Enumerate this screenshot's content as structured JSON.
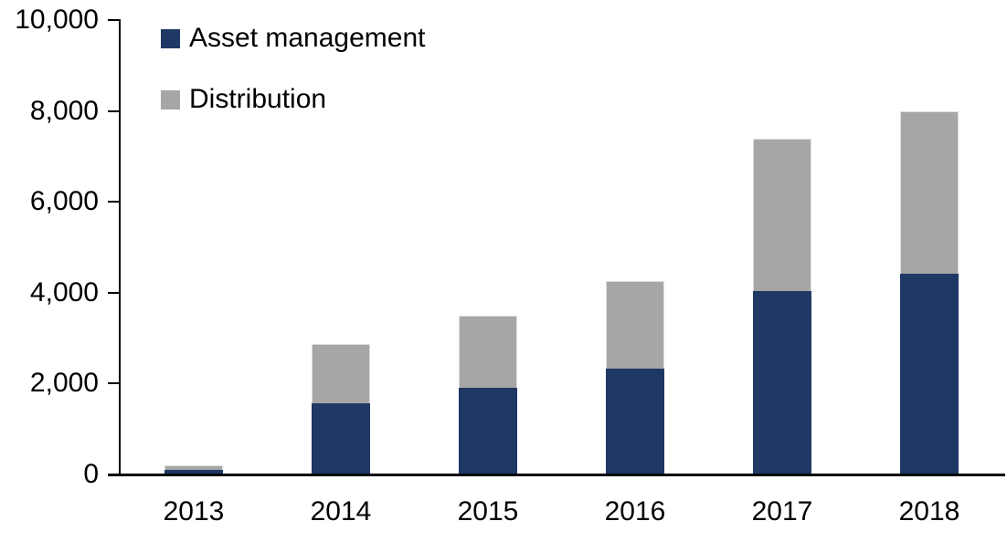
{
  "page": {
    "background_color": "#ffffff",
    "text_color": "#000000",
    "axis_color": "#000000"
  },
  "legend": {
    "items": [
      {
        "label": "Asset management",
        "color": "#1f3864"
      },
      {
        "label": "Distribution",
        "color": "#a6a6a6"
      }
    ]
  },
  "chart_data": {
    "type": "bar",
    "stacked": true,
    "title": "",
    "xlabel": "",
    "ylabel": "",
    "categories": [
      "2013",
      "2014",
      "2015",
      "2016",
      "2017",
      "2018"
    ],
    "series": [
      {
        "name": "Asset management",
        "color": "#1f3864",
        "values": [
          100,
          1570,
          1910,
          2320,
          4040,
          4410
        ]
      },
      {
        "name": "Distribution",
        "color": "#a6a6a6",
        "values": [
          100,
          1310,
          1590,
          1930,
          3350,
          3590
        ]
      }
    ],
    "totals": [
      200,
      2880,
      3500,
      4250,
      7390,
      8000
    ],
    "ylim": [
      0,
      10000
    ],
    "ytick_interval": 2000,
    "ytick_labels": [
      "0",
      "2,000",
      "4,000",
      "6,000",
      "8,000",
      "10,000"
    ],
    "grid": false,
    "legend_position": "top-left-inside"
  }
}
